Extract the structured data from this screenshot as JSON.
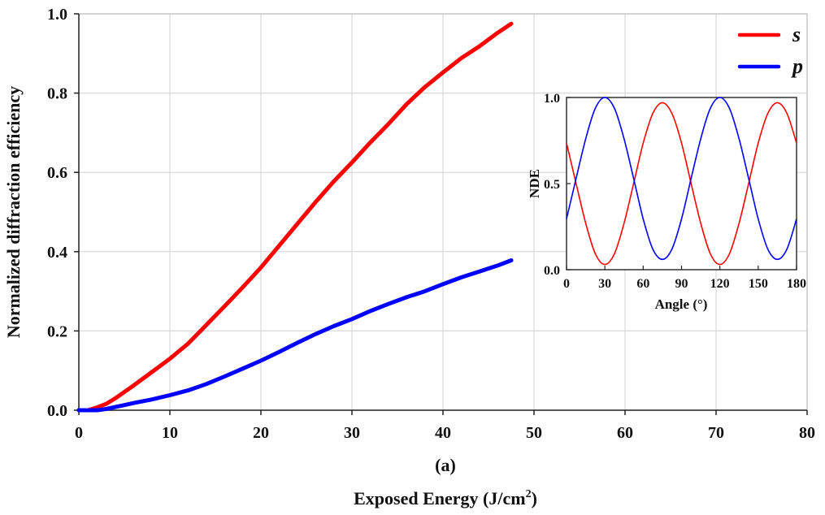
{
  "chart_data": [
    {
      "type": "line",
      "title": "",
      "caption": "(a)",
      "xlabel": "Exposed Energy (J/cm",
      "xlabel_sup": "2",
      "xlabel_end": ")",
      "ylabel": "Normalized diffraction efficiency",
      "xlim": [
        0,
        80
      ],
      "ylim": [
        0,
        1.0
      ],
      "grid": true,
      "legend_position": "top-right",
      "x_ticks": [
        "0",
        "10",
        "20",
        "30",
        "40",
        "50",
        "60",
        "70",
        "80"
      ],
      "y_ticks": [
        "0.0",
        "0.2",
        "0.4",
        "0.6",
        "0.8",
        "1.0"
      ],
      "x": [
        0,
        1,
        2,
        3,
        4,
        5,
        6,
        8,
        10,
        12,
        14,
        16,
        18,
        20,
        22,
        24,
        26,
        28,
        30,
        32,
        34,
        36,
        38,
        40,
        42,
        44,
        46,
        47.5
      ],
      "series": [
        {
          "name": "s",
          "color": "#ff0000",
          "values": [
            0.0,
            0.0,
            0.007,
            0.016,
            0.03,
            0.046,
            0.062,
            0.096,
            0.13,
            0.168,
            0.215,
            0.262,
            0.31,
            0.36,
            0.415,
            0.47,
            0.525,
            0.577,
            0.625,
            0.675,
            0.722,
            0.772,
            0.815,
            0.852,
            0.888,
            0.918,
            0.952,
            0.975
          ]
        },
        {
          "name": "p",
          "color": "#0000ff",
          "values": [
            0.0,
            0.0,
            0.0,
            0.003,
            0.008,
            0.013,
            0.018,
            0.027,
            0.038,
            0.05,
            0.066,
            0.085,
            0.105,
            0.125,
            0.147,
            0.17,
            0.192,
            0.212,
            0.23,
            0.25,
            0.268,
            0.285,
            0.3,
            0.318,
            0.335,
            0.35,
            0.365,
            0.378
          ]
        }
      ]
    },
    {
      "type": "line",
      "title": "",
      "xlabel": "Angle (°)",
      "ylabel": "NDE",
      "xlim": [
        0,
        180
      ],
      "ylim": [
        0,
        1.0
      ],
      "grid": false,
      "x_ticks": [
        "0",
        "30",
        "60",
        "90",
        "120",
        "150",
        "180"
      ],
      "y_ticks": [
        "0.0",
        "0.5",
        "1.0"
      ],
      "x": [
        0,
        7.5,
        15,
        22.5,
        30,
        37.5,
        45,
        52.5,
        60,
        67.5,
        75,
        82.5,
        90,
        97.5,
        105,
        112.5,
        120,
        127.5,
        135,
        142.5,
        150,
        157.5,
        165,
        172.5,
        180
      ],
      "series": [
        {
          "name": "s",
          "color": "#ff0000",
          "values": [
            0.735,
            0.5,
            0.27,
            0.093,
            0.03,
            0.093,
            0.27,
            0.5,
            0.735,
            0.907,
            0.97,
            0.907,
            0.735,
            0.5,
            0.27,
            0.093,
            0.03,
            0.093,
            0.27,
            0.5,
            0.735,
            0.907,
            0.97,
            0.907,
            0.735
          ]
        },
        {
          "name": "p",
          "color": "#0000ff",
          "values": [
            0.295,
            0.53,
            0.76,
            0.937,
            1.0,
            0.937,
            0.76,
            0.53,
            0.295,
            0.12,
            0.06,
            0.12,
            0.295,
            0.53,
            0.76,
            0.937,
            1.0,
            0.937,
            0.76,
            0.53,
            0.295,
            0.12,
            0.06,
            0.12,
            0.295
          ]
        }
      ]
    }
  ]
}
